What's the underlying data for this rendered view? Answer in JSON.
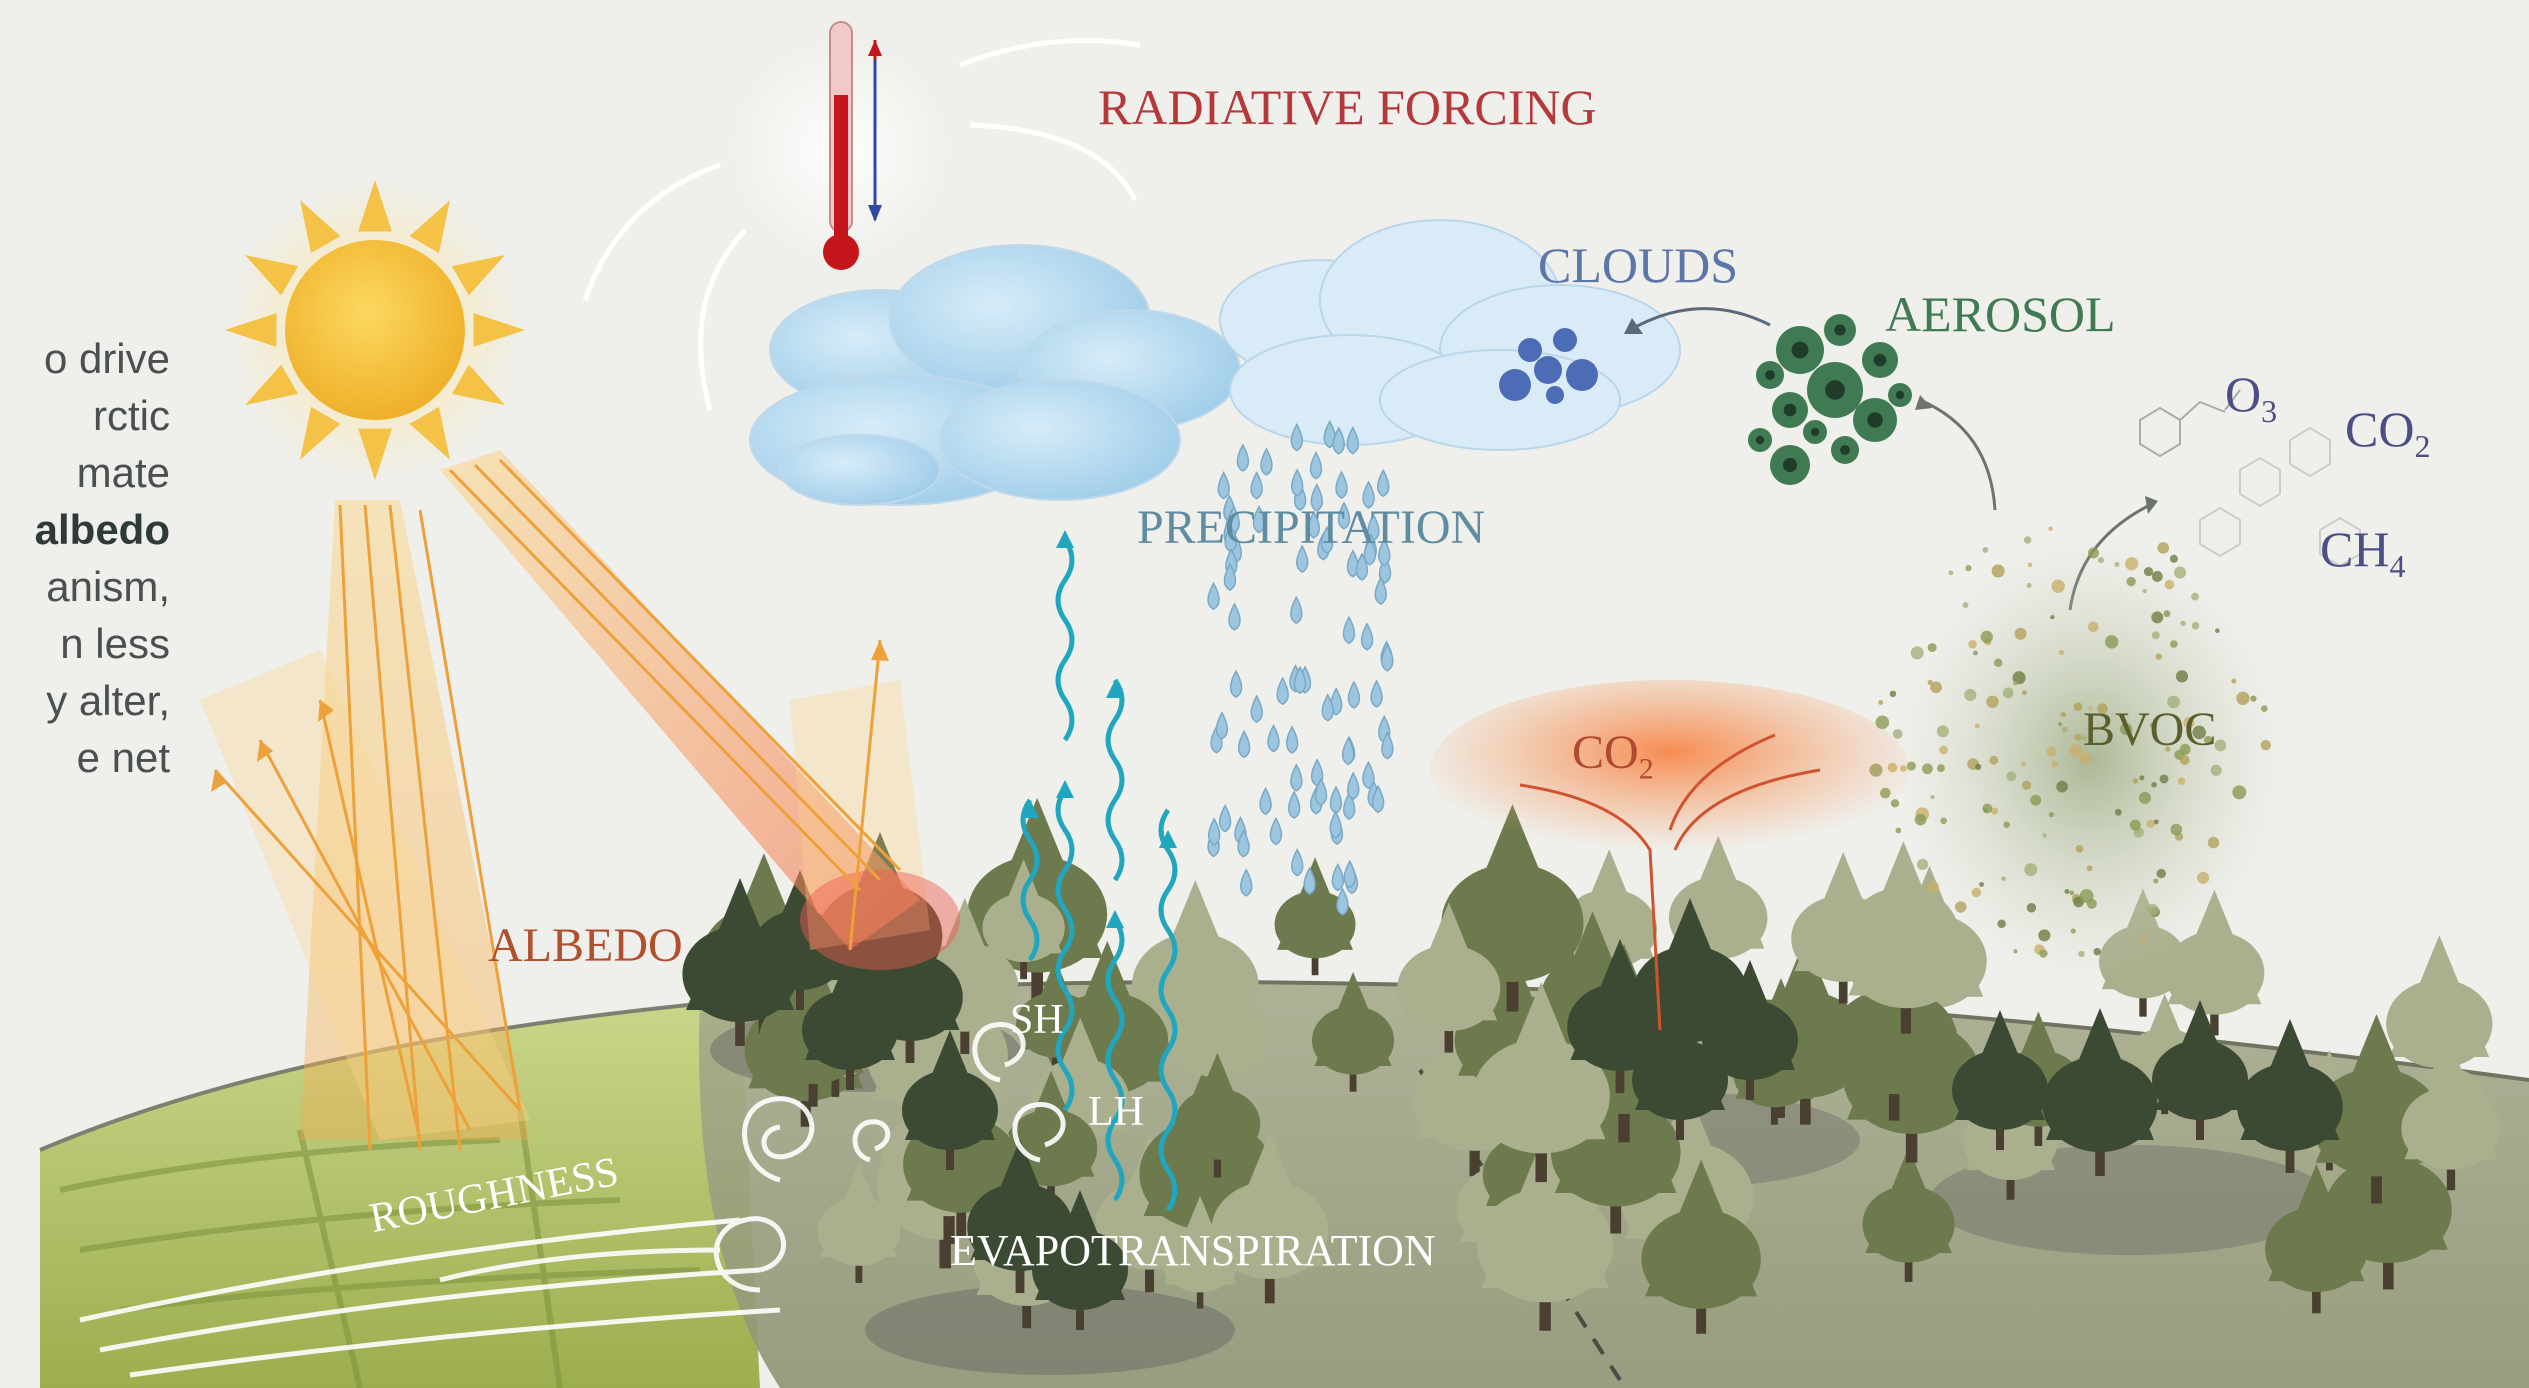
{
  "labels": {
    "radiative_forcing": "RADIATIVE FORCING",
    "clouds": "CLOUDS",
    "aerosol": "AEROSOL",
    "o3": "O",
    "o3_sub": "3",
    "co2_top": "CO",
    "co2_top_sub": "2",
    "ch4": "CH",
    "ch4_sub": "4",
    "precipitation": "PRECIPITATION",
    "co2_mid": "CO",
    "co2_mid_sub": "2",
    "bvoc": "BVOC",
    "albedo": "ALBEDO",
    "sh": "SH",
    "lh": "LH",
    "roughness": "ROUGHNESS",
    "evapotranspiration": "EVAPOTRANSPIRATION"
  },
  "side_text": [
    "o drive",
    "rctic",
    "mate",
    "albedo",
    "anism,",
    "n less",
    "y alter,",
    "e net"
  ],
  "colors": {
    "red_label": "#b5383a",
    "clouds_label": "#5b76a8",
    "aerosol_label": "#3f7a52",
    "gas_label": "#4b4f86",
    "precip_label": "#5f8ca0",
    "co2_mid_label": "#b0492d",
    "bvoc_label": "#5a5f2c",
    "albedo_label": "#b0502f",
    "sun": "#f3b62f",
    "vapor": "#21a6bf",
    "forest_dark": "#3c4a34",
    "forest_mid": "#6d7a4e",
    "forest_light": "#aab08e"
  }
}
